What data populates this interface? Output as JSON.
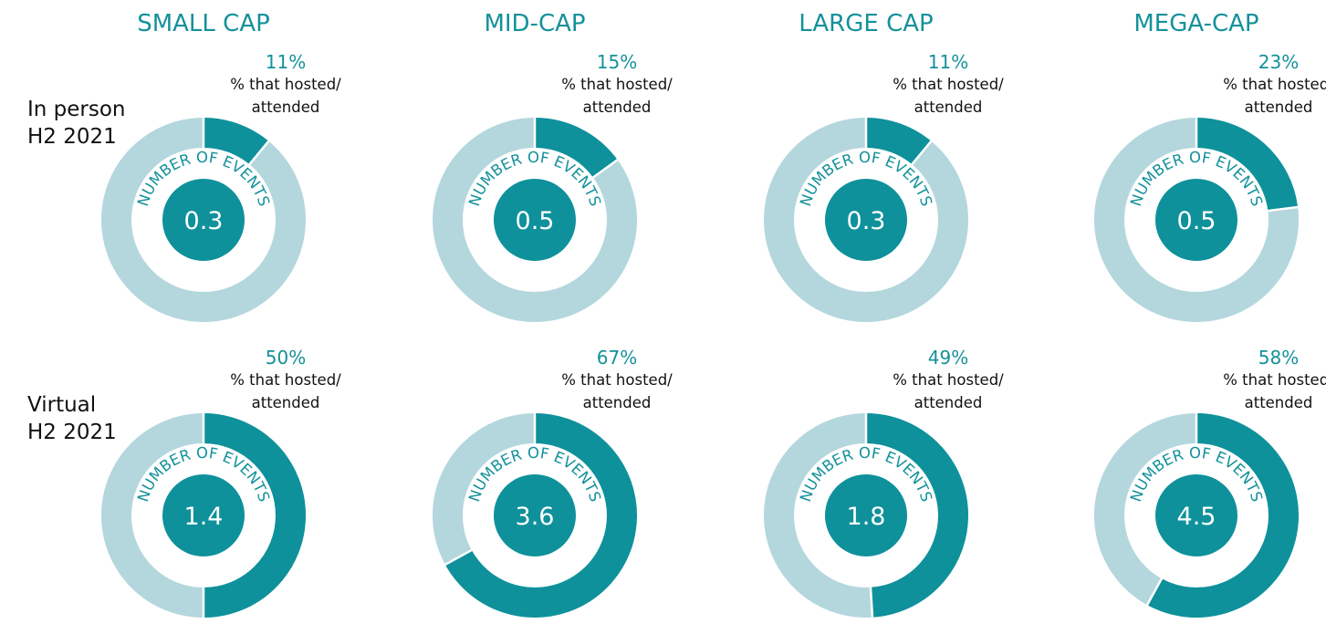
{
  "colors": {
    "accent": "#0E919B",
    "light": "#B4D7DD",
    "head": "#14919B"
  },
  "chart_data": {
    "type": "pie",
    "columns": [
      "SMALL CAP",
      "MID-CAP",
      "LARGE CAP",
      "MEGA-CAP"
    ],
    "rows": [
      {
        "label_lines": [
          "In person",
          "H2 2021"
        ],
        "pct_values": [
          11,
          15,
          11,
          23
        ],
        "pct_labels": [
          "11%",
          "15%",
          "11%",
          "23%"
        ],
        "events": [
          "0.3",
          "0.5",
          "0.3",
          "0.5"
        ]
      },
      {
        "label_lines": [
          "Virtual",
          "H2 2021"
        ],
        "pct_values": [
          50,
          67,
          49,
          58
        ],
        "pct_labels": [
          "50%",
          "67%",
          "49%",
          "58%"
        ],
        "events": [
          "1.4",
          "3.6",
          "1.8",
          "4.5"
        ]
      }
    ],
    "sub_label_lines": [
      "% that hosted/",
      "attended"
    ],
    "center_caption": "NUMBER OF EVENTS"
  }
}
